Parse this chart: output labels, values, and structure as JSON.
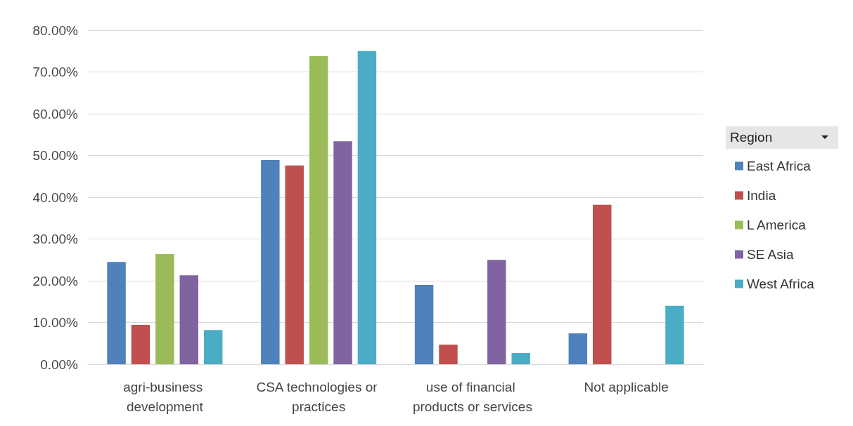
{
  "chart_data": {
    "type": "bar",
    "categories": [
      "agri-business development",
      "CSA technologies or practices",
      "use of financial products or services",
      "Not applicable"
    ],
    "series": [
      {
        "name": "East Africa",
        "color": "#4f81bd",
        "values": [
          24.5,
          48.9,
          19.0,
          7.4
        ]
      },
      {
        "name": "India",
        "color": "#c0504d",
        "values": [
          9.4,
          47.6,
          4.7,
          38.2
        ]
      },
      {
        "name": "L America",
        "color": "#9bbb59",
        "values": [
          26.4,
          73.8,
          null,
          null
        ]
      },
      {
        "name": "SE Asia",
        "color": "#8064a2",
        "values": [
          21.3,
          53.4,
          25.0,
          null
        ]
      },
      {
        "name": "West Africa",
        "color": "#4bacc6",
        "values": [
          8.2,
          75.0,
          2.7,
          14.0
        ]
      }
    ],
    "legend_title": "Region",
    "ylim": [
      0,
      80
    ],
    "yticks": [
      {
        "value": 0,
        "label": "0.00%"
      },
      {
        "value": 10,
        "label": "10.00%"
      },
      {
        "value": 20,
        "label": "20.00%"
      },
      {
        "value": 30,
        "label": "30.00%"
      },
      {
        "value": 40,
        "label": "40.00%"
      },
      {
        "value": 50,
        "label": "50.00%"
      },
      {
        "value": 60,
        "label": "60.00%"
      },
      {
        "value": 70,
        "label": "70.00%"
      },
      {
        "value": 80,
        "label": "80.00%"
      }
    ],
    "grid": "y",
    "legend": "right"
  }
}
